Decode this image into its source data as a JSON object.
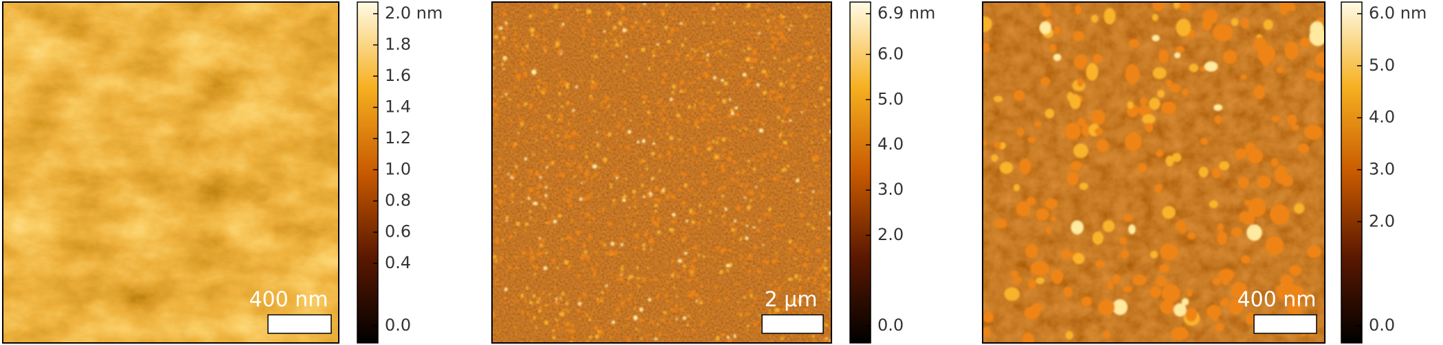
{
  "panels": [
    {
      "scale_bar": "400 nm",
      "colorbar": {
        "lim": [
          0,
          2
        ],
        "ticks": [
          {
            "value": 0,
            "label": "0.0"
          },
          0.4,
          0.6,
          0.8,
          {
            "value": 1,
            "label": "1.0"
          },
          1.2,
          1.4,
          1.6,
          1.8,
          {
            "value": 2,
            "label": "2.0 nm"
          }
        ]
      }
    },
    {
      "scale_bar": "2 µm",
      "colorbar": {
        "lim": [
          0,
          6.9
        ],
        "ticks": [
          {
            "value": 0,
            "label": "0.0"
          },
          {
            "value": 2,
            "label": "2.0"
          },
          {
            "value": 3,
            "label": "3.0"
          },
          {
            "value": 4,
            "label": "4.0"
          },
          {
            "value": 5,
            "label": "5.0"
          },
          {
            "value": 6,
            "label": "6.0"
          },
          {
            "value": 6.9,
            "label": "6.9 nm"
          }
        ]
      }
    },
    {
      "scale_bar": "400 nm",
      "colorbar": {
        "lim": [
          0,
          6
        ],
        "ticks": [
          {
            "value": 0,
            "label": "0.0"
          },
          {
            "value": 2,
            "label": "2.0"
          },
          {
            "value": 3,
            "label": "3.0"
          },
          {
            "value": 4,
            "label": "4.0"
          },
          {
            "value": 5,
            "label": "5.0"
          },
          {
            "value": 6,
            "label": "6.0 nm"
          }
        ]
      }
    }
  ]
}
